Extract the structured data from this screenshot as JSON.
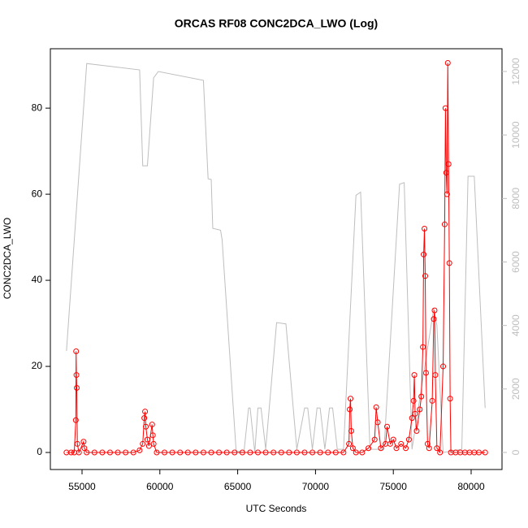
{
  "chart_data": {
    "type": "line",
    "title": "ORCAS RF08 CONC2DCA_LWO (Log)",
    "x_label": "UTC Seconds",
    "y_label": "CONC2DCA_LWO",
    "xlim": [
      52965,
      81983
    ],
    "xticks": [
      55000,
      60000,
      65000,
      70000,
      75000,
      80000
    ],
    "ylim": [
      -3.96,
      93.8
    ],
    "yticks": [
      0,
      20,
      40,
      60,
      80
    ],
    "y2lim": [
      -537,
      12716
    ],
    "y2ticks": [
      0,
      2000,
      4000,
      6000,
      8000,
      10000,
      12000
    ],
    "series": [
      {
        "color": "#bebebe",
        "axis": "y2",
        "markers": false,
        "x": [
          54000,
          55300,
          58700,
          58900,
          59200,
          59600,
          59900,
          62800,
          63100,
          63300,
          63400,
          63900,
          64000,
          64900,
          65400,
          65700,
          65800,
          66100,
          66300,
          66500,
          66800,
          67500,
          68100,
          68800,
          69300,
          69500,
          69800,
          70100,
          70300,
          70600,
          70900,
          71100,
          71400,
          71800,
          72600,
          72900,
          73500,
          74400,
          75400,
          75700,
          76200,
          77600,
          77800,
          78200,
          79400,
          79800,
          80200,
          80900
        ],
        "values": [
          3200,
          12250,
          12050,
          9030,
          9030,
          11800,
          12000,
          11720,
          8620,
          8600,
          7060,
          7000,
          6700,
          50,
          0,
          1400,
          1400,
          0,
          1400,
          1400,
          100,
          4090,
          4050,
          100,
          1400,
          1400,
          100,
          1400,
          1400,
          100,
          1400,
          1400,
          100,
          100,
          8100,
          8200,
          100,
          100,
          8450,
          8500,
          100,
          4550,
          4000,
          0,
          100,
          8700,
          8700,
          1400
        ]
      },
      {
        "color": "#ff0000",
        "markers": true,
        "x": [
          54000,
          54300,
          54500,
          54600,
          54620,
          54640,
          54660,
          54700,
          54800,
          55100,
          55150,
          55300,
          55800,
          56300,
          56800,
          57300,
          57800,
          58300,
          58700,
          58900,
          59000,
          59050,
          59100,
          59200,
          59300,
          59500,
          59550,
          59600,
          59800,
          60300,
          60800,
          61300,
          61800,
          62300,
          62800,
          63300,
          63800,
          64300,
          64800,
          65300,
          65800,
          66300,
          66800,
          67300,
          67800,
          68300,
          68800,
          69300,
          69800,
          70300,
          70800,
          71300,
          71800,
          72150,
          72200,
          72250,
          72300,
          72400,
          72600,
          73000,
          73400,
          73800,
          73900,
          74000,
          74200,
          74500,
          74600,
          74800,
          75000,
          75200,
          75500,
          75800,
          76000,
          76200,
          76300,
          76350,
          76400,
          76500,
          76700,
          76800,
          76900,
          76950,
          77000,
          77050,
          77100,
          77200,
          77300,
          77500,
          77600,
          77650,
          77700,
          77800,
          78000,
          78200,
          78300,
          78350,
          78400,
          78450,
          78500,
          78550,
          78600,
          78650,
          78700,
          79000,
          79300,
          79600,
          79900,
          80200,
          80500,
          80900
        ],
        "values": [
          0,
          0,
          0,
          7.5,
          23.5,
          18,
          15,
          2,
          0,
          2.5,
          1,
          0,
          0,
          0,
          0,
          0,
          0,
          0,
          0.5,
          2,
          8,
          9.5,
          6,
          3,
          1.5,
          6.5,
          4,
          2,
          0,
          0,
          0,
          0,
          0,
          0,
          0,
          0,
          0,
          0,
          0,
          0,
          0,
          0,
          0,
          0,
          0,
          0,
          0,
          0,
          0,
          0,
          0,
          0,
          0,
          2,
          10,
          12.5,
          5,
          1,
          0,
          0,
          1,
          3,
          10.5,
          7,
          1,
          2,
          6,
          2,
          3,
          1,
          2,
          1,
          3,
          8,
          12,
          18,
          9,
          5,
          10,
          13,
          24.5,
          46,
          52,
          41,
          18.5,
          2,
          1,
          12,
          31,
          33,
          18,
          1,
          0,
          20,
          53,
          80,
          65,
          60,
          90.5,
          67,
          44,
          12.5,
          0,
          0,
          0,
          0,
          0,
          0,
          0,
          0
        ]
      }
    ]
  }
}
